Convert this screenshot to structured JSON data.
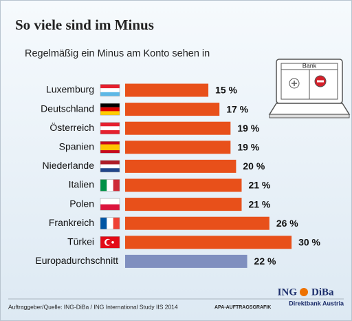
{
  "chart_data": {
    "type": "bar",
    "orientation": "horizontal",
    "title": "So viele sind im Minus",
    "subtitle": "Regelmäßig ein Minus am Konto sehen in",
    "categories": [
      "Luxemburg",
      "Deutschland",
      "Österreich",
      "Spanien",
      "Niederlande",
      "Italien",
      "Polen",
      "Frankreich",
      "Türkei",
      "Europadurchschnitt"
    ],
    "values": [
      15,
      17,
      19,
      19,
      20,
      21,
      21,
      26,
      30,
      22
    ],
    "value_labels": [
      "15 %",
      "17 %",
      "19 %",
      "19 %",
      "20 %",
      "21 %",
      "21 %",
      "26 %",
      "30 %",
      "22 %"
    ],
    "colors": [
      "#e8501a",
      "#e8501a",
      "#e8501a",
      "#e8501a",
      "#e8501a",
      "#e8501a",
      "#e8501a",
      "#e8501a",
      "#e8501a",
      "#7f8fbf"
    ],
    "icon_text": "Bank",
    "source": "Auftraggeber/Quelle: ING-DiBa / ING International Study IIS 2014",
    "credit": "APA-AUFTRAGSGRAFIK",
    "logo": "ING",
    "logo_2": "DiBa",
    "logo_sub": "Direktbank Austria"
  }
}
